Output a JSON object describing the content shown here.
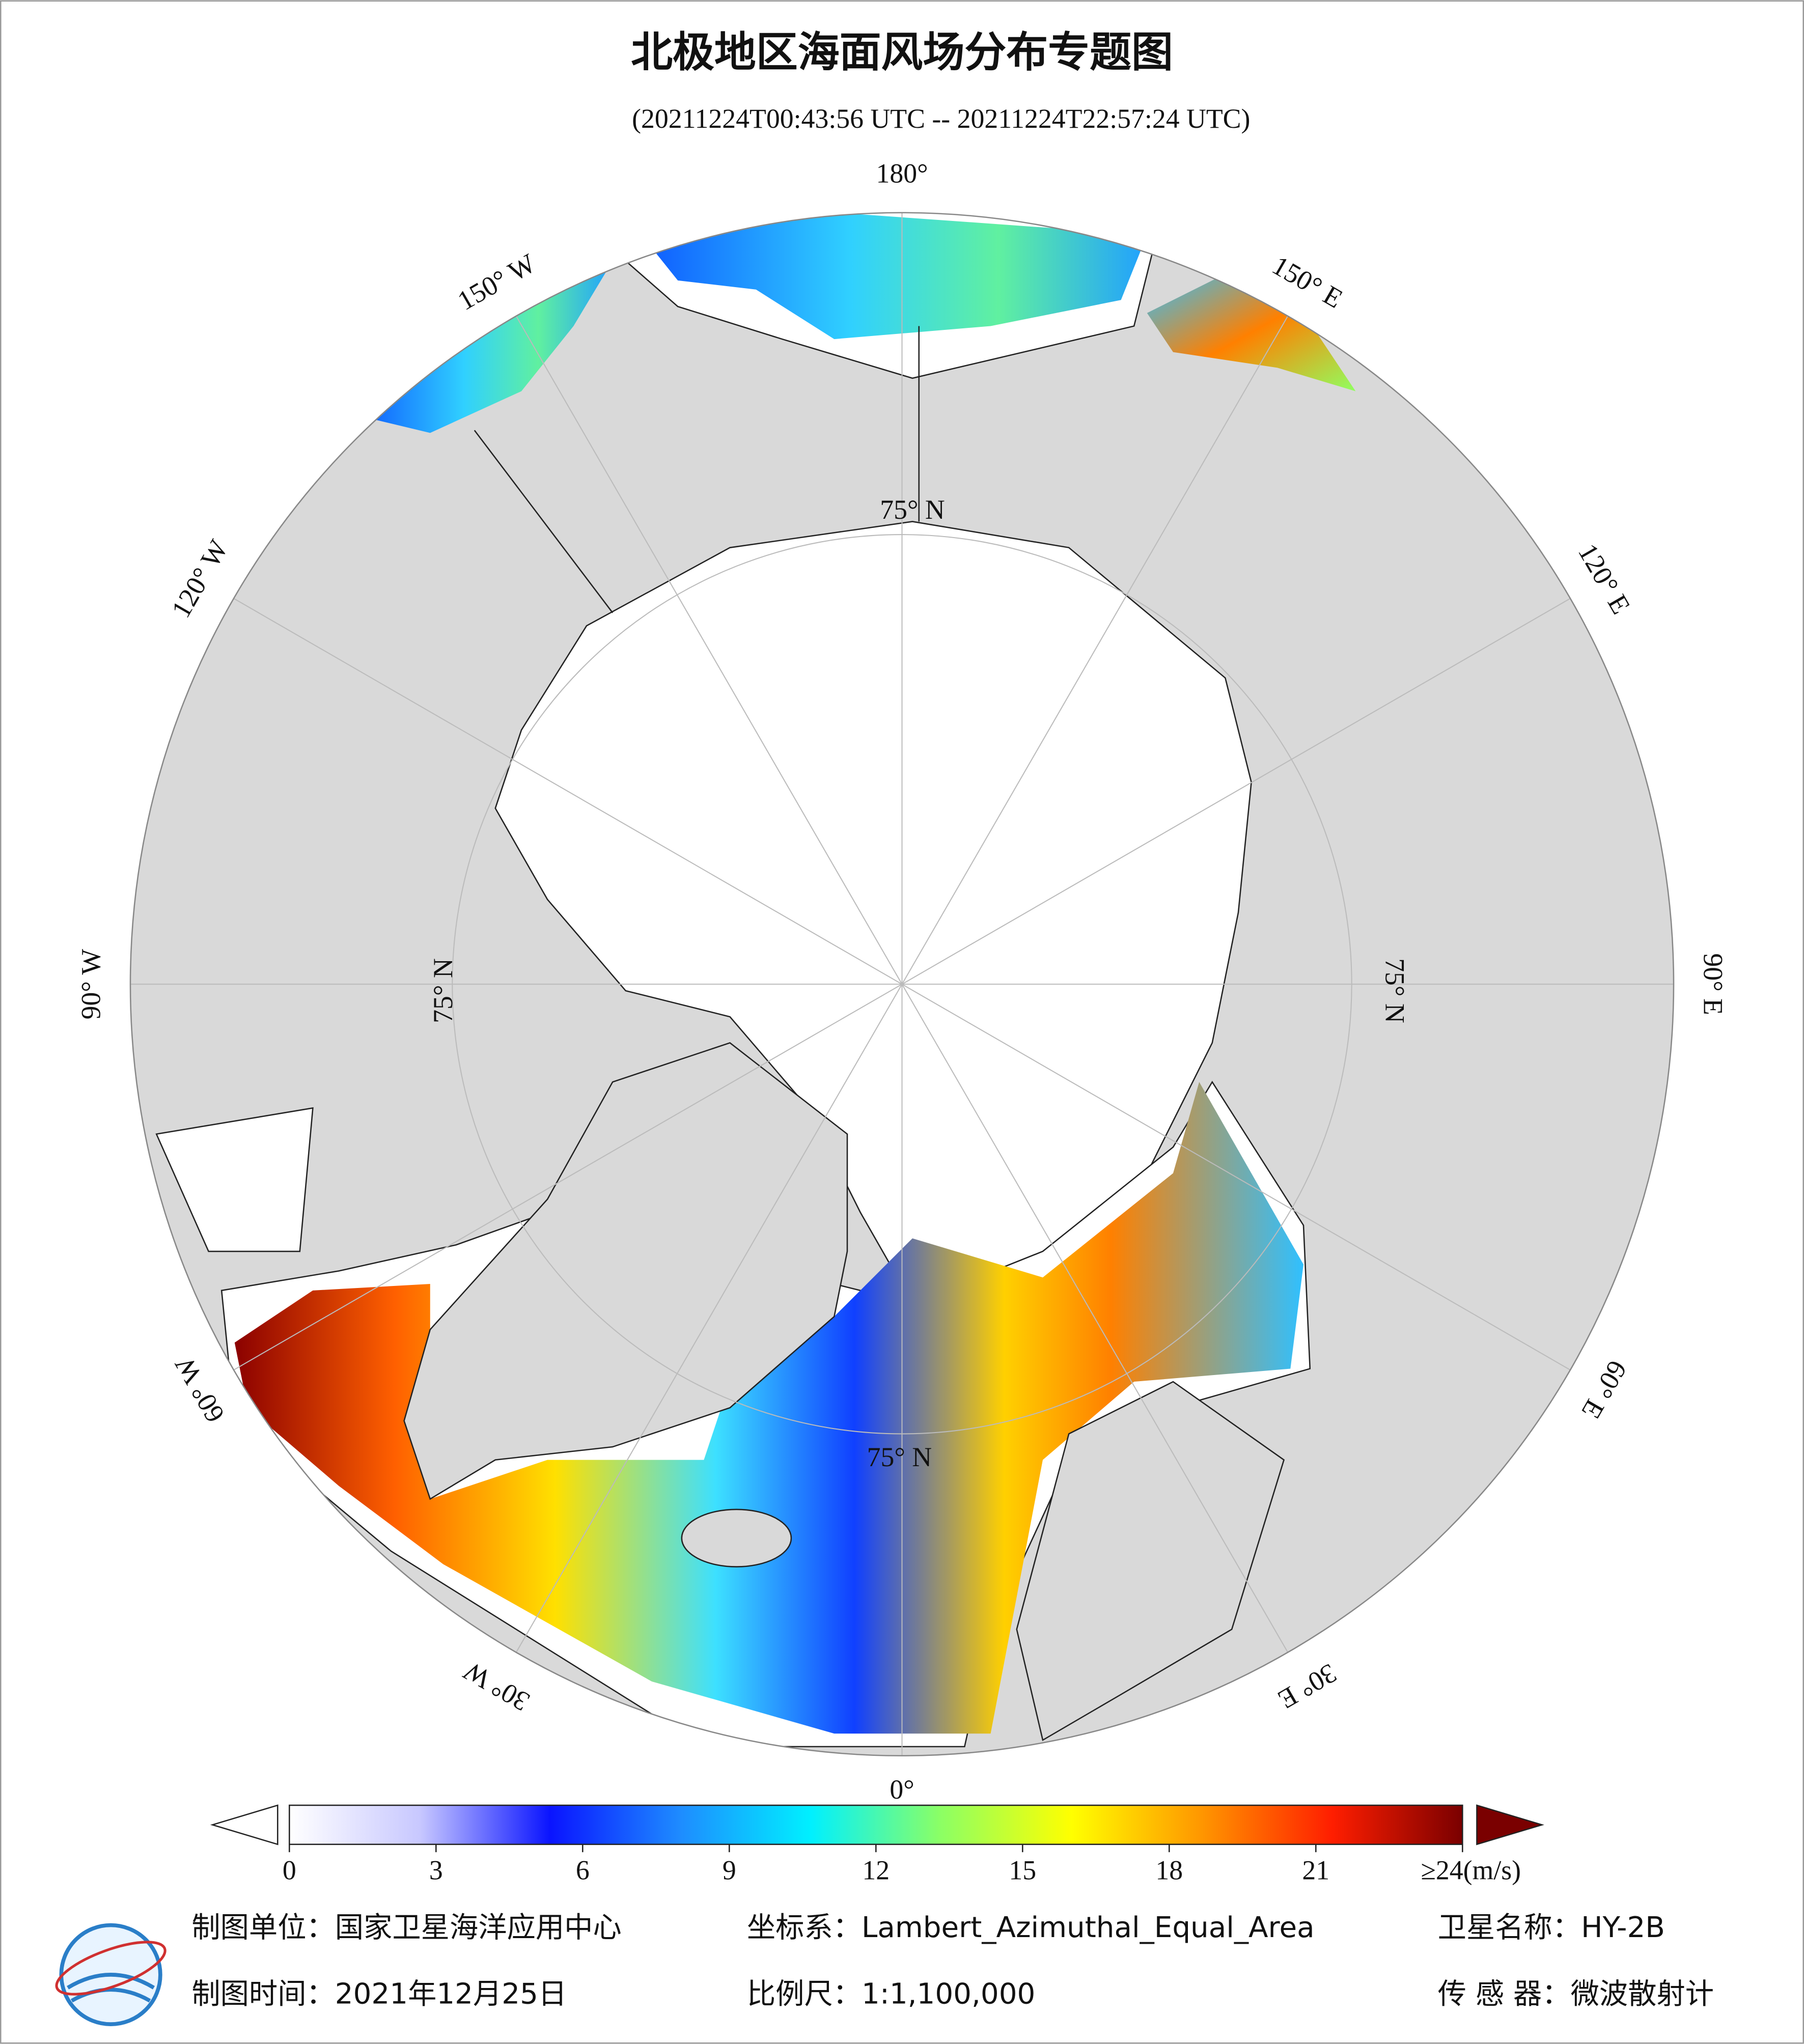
{
  "title": "北极地区海面风场分布专题图",
  "subtitle": "(20211224T00:43:56 UTC -- 20211224T22:57:24 UTC)",
  "map": {
    "lon_labels": [
      "180°",
      "150° E",
      "120° E",
      "90° E",
      "60° E",
      "30° E",
      "0°",
      "30° W",
      "60° W",
      "90° W",
      "120° W",
      "150° W"
    ],
    "lat_labels": [
      "75° N",
      "75° N",
      "75° N",
      "75° N"
    ]
  },
  "colorbar": {
    "range": [
      0,
      24
    ],
    "ticks": [
      0,
      3,
      6,
      9,
      12,
      15,
      18,
      21,
      {
        "value": 24,
        "label": "≥24(m/s)"
      }
    ],
    "colors": [
      "#ffffff",
      "#c8c8ff",
      "#0a14ff",
      "#1e8cff",
      "#00f0ff",
      "#8cff64",
      "#ffff00",
      "#ff9600",
      "#ff1e00",
      "#7a0000"
    ]
  },
  "footer": {
    "unit": "制图单位：国家卫星海洋应用中心",
    "date": "制图时间：2021年12月25日",
    "crs": "坐标系：Lambert_Azimuthal_Equal_Area",
    "scale": "比例尺：1:1,100,000",
    "satellite": "卫星名称：HY-2B",
    "sensor": "传 感 器：微波散射计"
  }
}
